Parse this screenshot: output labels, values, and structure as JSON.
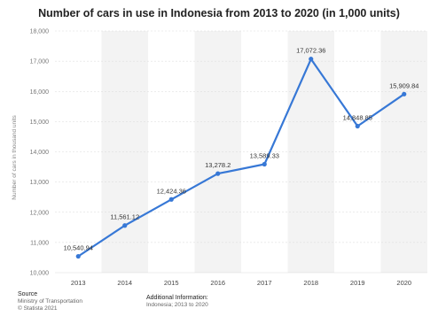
{
  "chart_data": {
    "type": "line",
    "title": "Number of cars in use in Indonesia from 2013 to 2020 (in 1,000 units)",
    "xlabel": "",
    "ylabel": "Number of cars in thousand units",
    "ylim": [
      10000,
      18000
    ],
    "yticks": [
      10000,
      11000,
      12000,
      13000,
      14000,
      15000,
      16000,
      17000,
      18000
    ],
    "ytick_labels": [
      "10,000",
      "11,000",
      "12,000",
      "13,000",
      "14,000",
      "15,000",
      "16,000",
      "17,000",
      "18,000"
    ],
    "categories": [
      "2013",
      "2014",
      "2015",
      "2016",
      "2017",
      "2018",
      "2019",
      "2020"
    ],
    "values": [
      10540.94,
      11561.12,
      12424.36,
      13278.2,
      13589.33,
      17072.36,
      14848.85,
      15909.84
    ],
    "data_labels": [
      "10,540.94",
      "11,561.12",
      "12,424.36",
      "13,278.2",
      "13,589.33",
      "17,072.36",
      "14,848.85",
      "15,909.84"
    ],
    "grid": true,
    "legend": "none",
    "line_color": "#3778d6",
    "label_color": "#333333"
  },
  "footer": {
    "source_heading": "Source",
    "source_lines": [
      "Ministry of Transportation",
      "© Statista 2021"
    ],
    "info_heading": "Additional Information:",
    "info_lines": [
      "Indonesia; 2013 to 2020"
    ]
  }
}
